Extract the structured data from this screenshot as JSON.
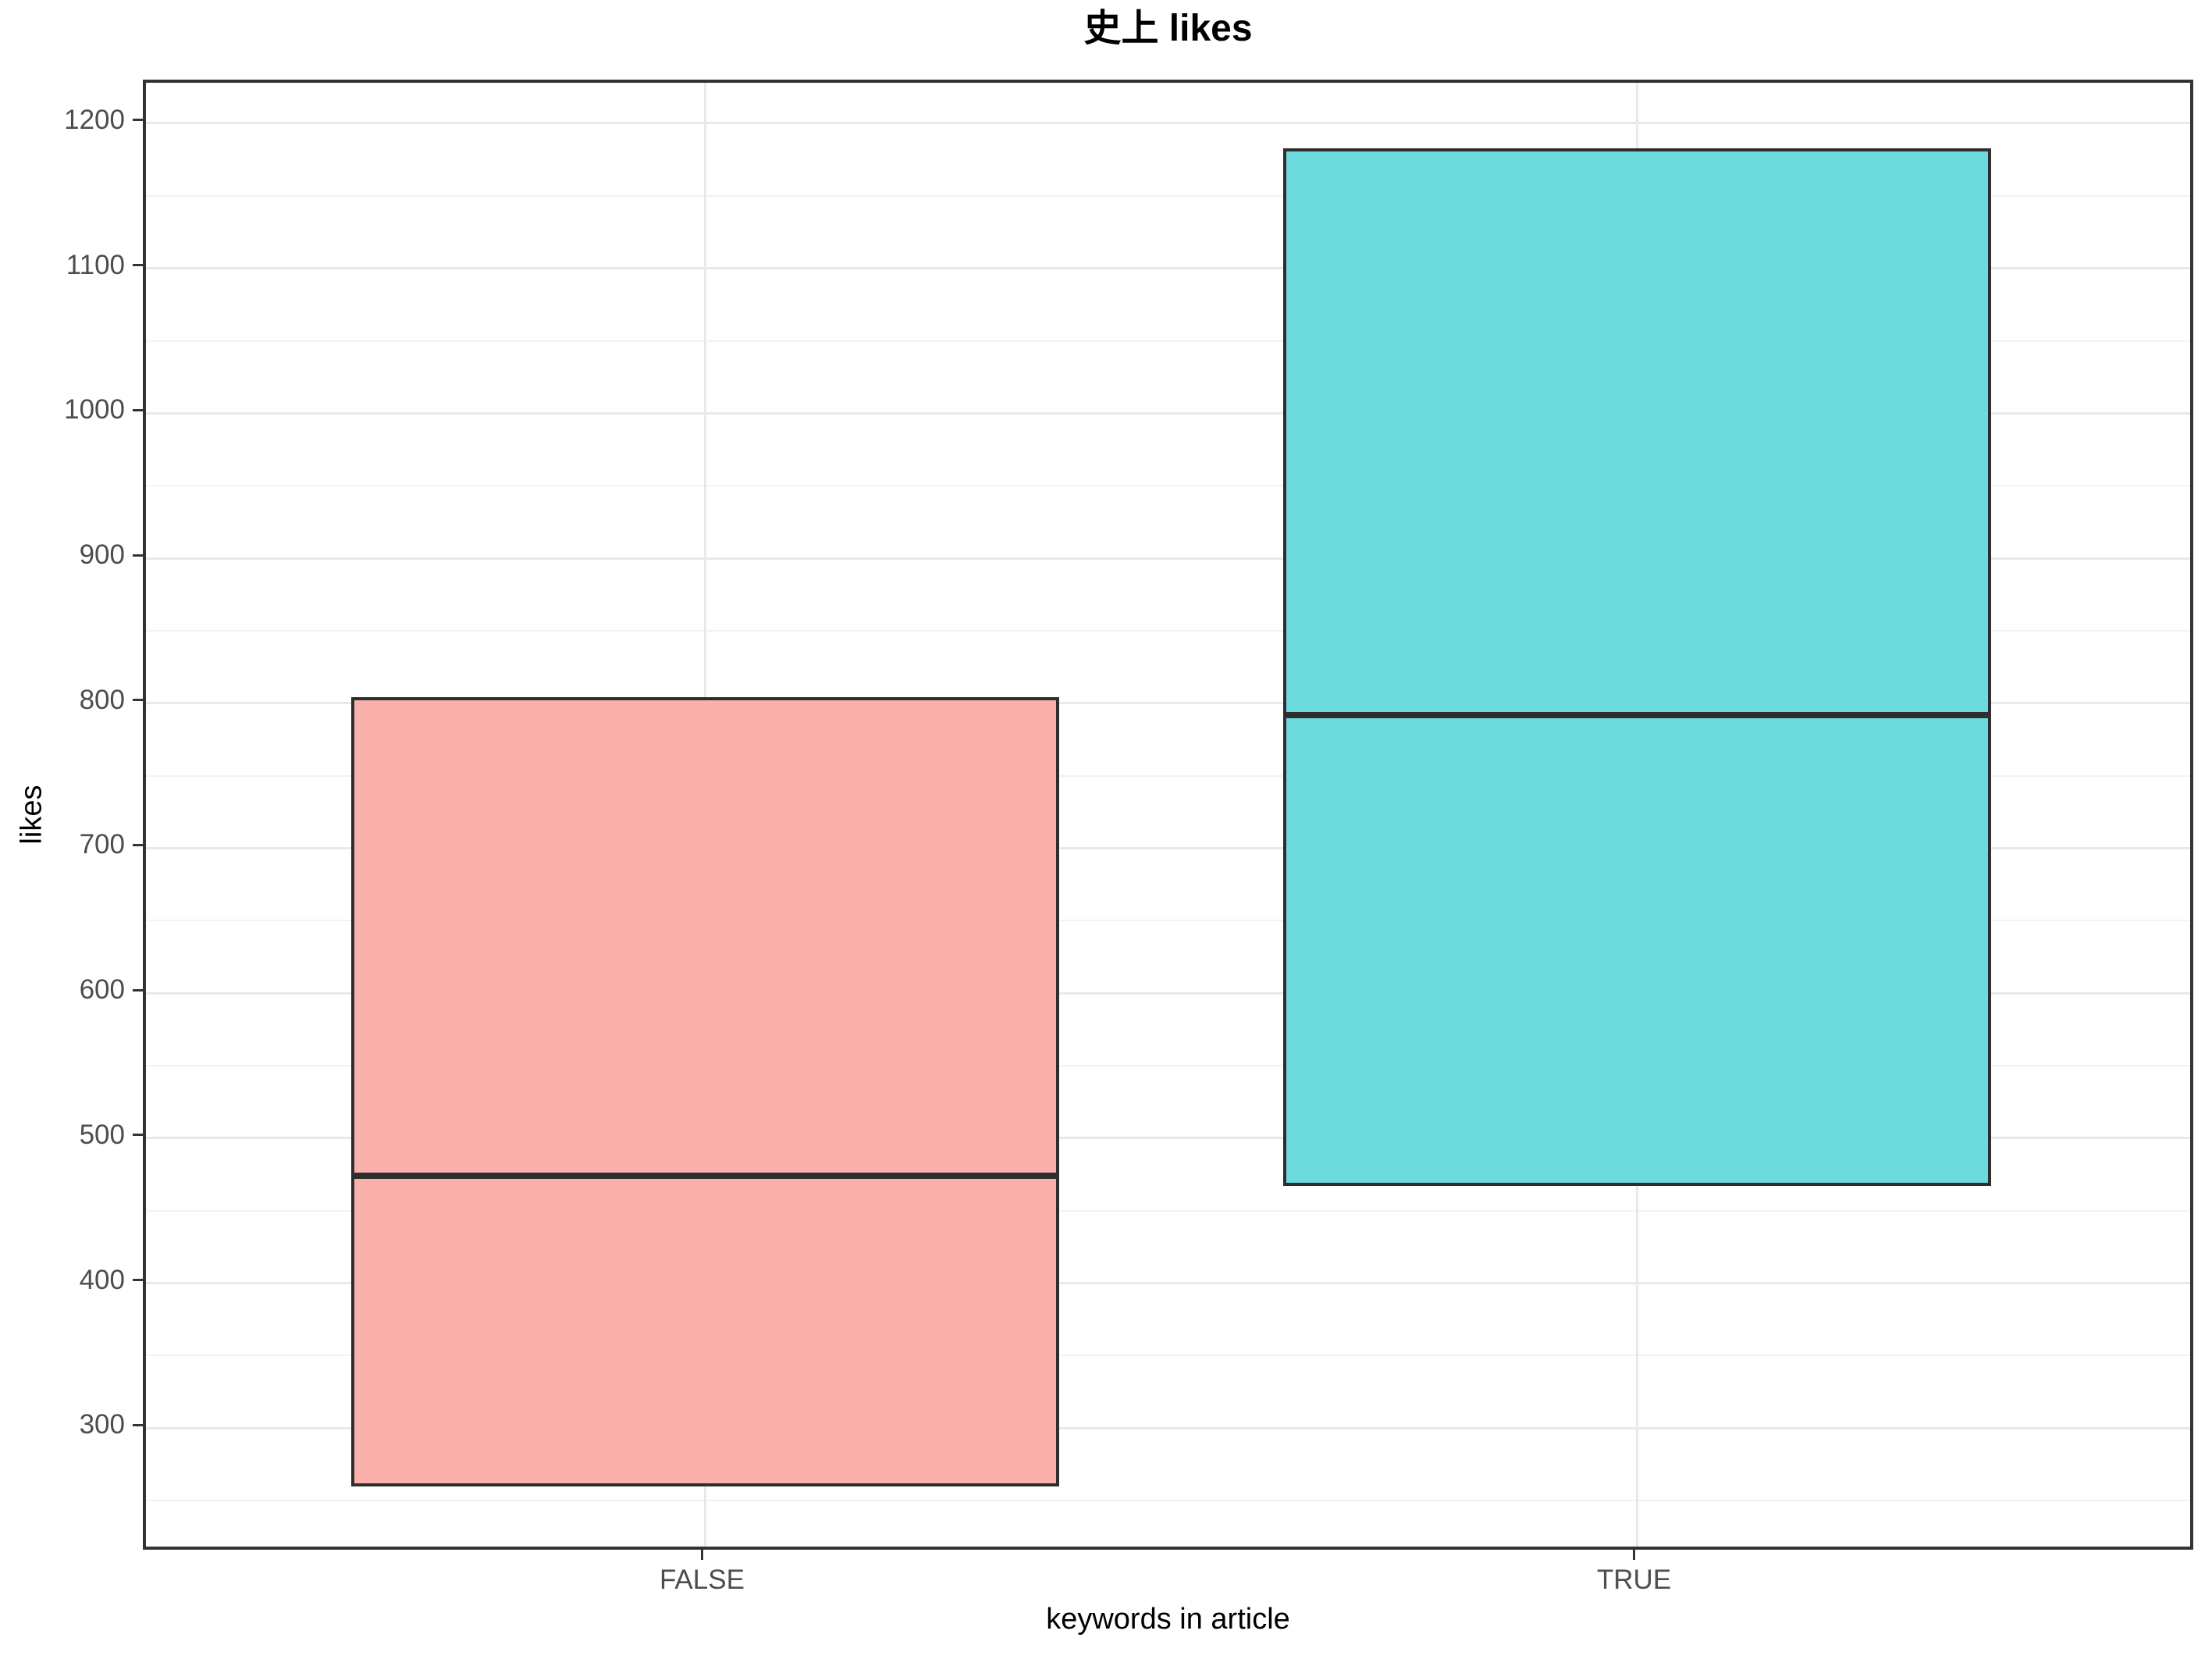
{
  "page": {
    "title": "史上 likes"
  },
  "axes": {
    "y": {
      "title": "likes",
      "tick_labels": [
        "1200",
        "1100",
        "1000",
        "900",
        "800",
        "700",
        "600",
        "500",
        "400",
        "300"
      ]
    },
    "x": {
      "title": "keywords in article",
      "tick_labels": [
        "FALSE",
        "TRUE"
      ]
    }
  },
  "chart_data": {
    "type": "boxplot",
    "title": "史上 likes",
    "xlabel": "keywords in article",
    "ylabel": "likes",
    "categories": [
      "FALSE",
      "TRUE"
    ],
    "series": [
      {
        "name": "FALSE",
        "lower_hinge": 260,
        "median": 474,
        "upper_hinge": 804,
        "whisker_min": 260,
        "whisker_max": 804,
        "outliers": [],
        "fill": "#FAB1AC"
      },
      {
        "name": "TRUE",
        "lower_hinge": 467,
        "median": 792,
        "upper_hinge": 1183,
        "whisker_min": 467,
        "whisker_max": 1183,
        "outliers": [],
        "fill": "#6DDADD"
      }
    ],
    "ylim": [
      214,
      1228
    ],
    "y_major_ticks": [
      300,
      400,
      500,
      600,
      700,
      800,
      900,
      1000,
      1100,
      1200
    ],
    "y_minor_ticks": [
      250,
      350,
      450,
      550,
      650,
      750,
      850,
      950,
      1050,
      1150
    ],
    "grid": "horizontal major+minor, vertical major at category centers",
    "legend_position": "none"
  },
  "colors": {
    "background": "#FFFFFF",
    "panel_border": "#333333",
    "grid_major": "#E9E9E9",
    "grid_minor": "#F2F2F2",
    "box_stroke": "#2E2E2E",
    "tick_mark": "#333333",
    "tick_text": "#4D4D4D",
    "title_text": "#000000"
  }
}
